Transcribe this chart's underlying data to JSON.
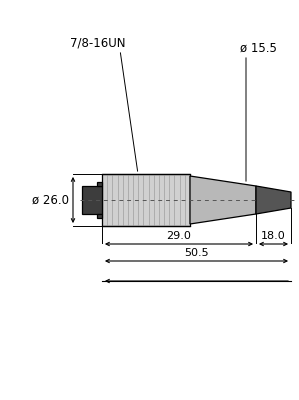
{
  "bg_color": "#ffffff",
  "line_color": "#1a1a1a",
  "dim_line_color": "#000000",
  "connector_color_dark": "#4d4d4d",
  "connector_color_nut": "#3d3d3d",
  "connector_color_thread": "#d0d0d0",
  "connector_color_stripe": "#aaaaaa",
  "connector_color_body": "#b8b8b8",
  "connector_color_tip": "#555555",
  "connector_color_cable": "#666666",
  "label_78_16UN": "7/8-16UN",
  "label_dia_26": "ø 26.0",
  "label_dia_15": "ø 15.5",
  "label_29": "29.0",
  "label_18": "18.0",
  "label_50_5": "50.5",
  "font_size_main": 8.5,
  "font_size_dim": 8.0
}
